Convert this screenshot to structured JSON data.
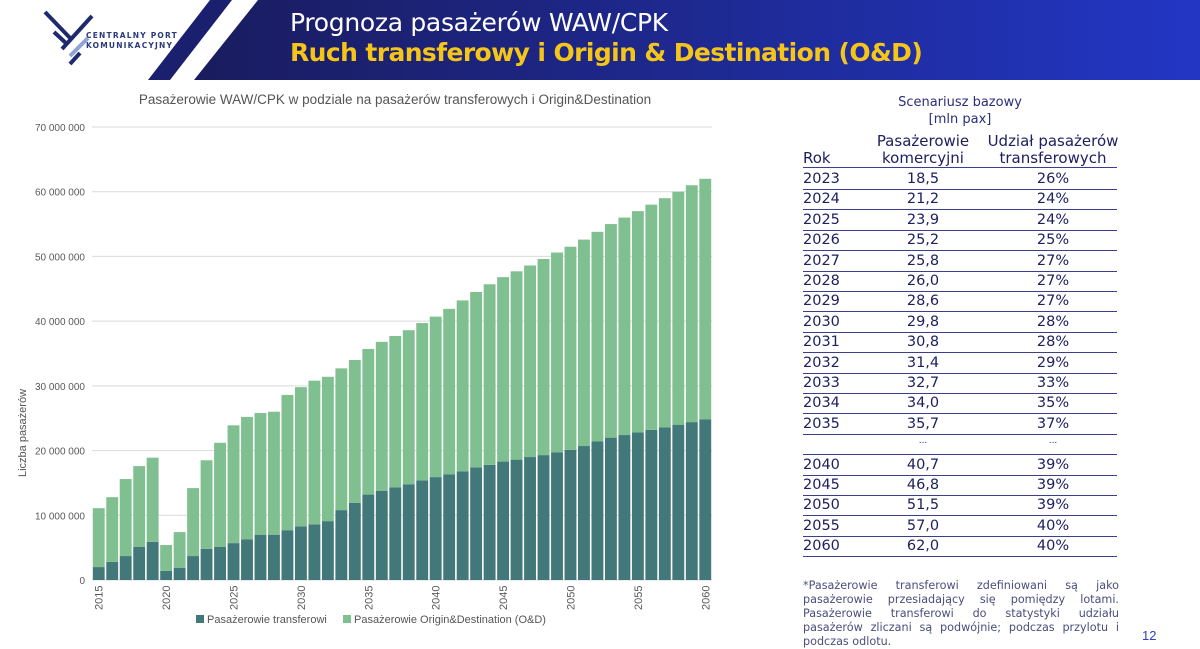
{
  "header": {
    "logo_lines": [
      "CENTRALNY PORT",
      "KOMUNIKACYJNY"
    ],
    "title": "Prognoza pasażerów WAW/CPK",
    "subtitle": "Ruch transferowy i Origin & Destination (O&D)"
  },
  "chart_data": {
    "type": "bar",
    "stacked": true,
    "title": "Pasażerowie WAW/CPK w podziale na pasażerów transferowych i Origin&Destination",
    "xlabel": "",
    "ylabel": "Liczba pasażerów",
    "ylim": [
      0,
      70000000
    ],
    "yticks": [
      0,
      10000000,
      20000000,
      30000000,
      40000000,
      50000000,
      60000000,
      70000000
    ],
    "ytick_labels": [
      "0",
      "10 000 000",
      "20 000 000",
      "30 000 000",
      "40 000 000",
      "50 000 000",
      "60 000 000",
      "70 000 000"
    ],
    "xtick_labels": [
      "2015",
      "2020",
      "2025",
      "2030",
      "2035",
      "2040",
      "2045",
      "2050",
      "2055",
      "2060"
    ],
    "grid": true,
    "legend": "bottom",
    "categories": [
      2015,
      2016,
      2017,
      2018,
      2019,
      2020,
      2021,
      2022,
      2023,
      2024,
      2025,
      2026,
      2027,
      2028,
      2029,
      2030,
      2031,
      2032,
      2033,
      2034,
      2035,
      2036,
      2037,
      2038,
      2039,
      2040,
      2041,
      2042,
      2043,
      2044,
      2045,
      2046,
      2047,
      2048,
      2049,
      2050,
      2051,
      2052,
      2053,
      2054,
      2055,
      2056,
      2057,
      2058,
      2059,
      2060
    ],
    "series": [
      {
        "name": "Pasażerowie transferowi",
        "color": "#43787a",
        "values": [
          2000000,
          2800000,
          3700000,
          5100000,
          5900000,
          1400000,
          1900000,
          3700000,
          4800000,
          5100000,
          5700000,
          6300000,
          7000000,
          7000000,
          7700000,
          8300000,
          8600000,
          9100000,
          10800000,
          11900000,
          13200000,
          13800000,
          14300000,
          14800000,
          15400000,
          15900000,
          16300000,
          16800000,
          17400000,
          17800000,
          18300000,
          18600000,
          19000000,
          19300000,
          19700000,
          20100000,
          20700000,
          21400000,
          22000000,
          22400000,
          22800000,
          23200000,
          23600000,
          24000000,
          24400000,
          24800000
        ]
      },
      {
        "name": "Pasażerowie Origin&Destination (O&D)",
        "color": "#80bf90",
        "values": [
          9100000,
          10000000,
          11900000,
          12500000,
          13000000,
          4000000,
          5500000,
          10500000,
          13700000,
          16100000,
          18200000,
          18900000,
          18800000,
          19000000,
          20900000,
          21500000,
          22200000,
          22300000,
          21900000,
          22100000,
          22500000,
          23000000,
          23400000,
          23800000,
          24300000,
          24800000,
          25600000,
          26400000,
          27100000,
          27900000,
          28500000,
          29100000,
          29600000,
          30300000,
          30900000,
          31400000,
          31900000,
          32400000,
          33000000,
          33600000,
          34200000,
          34800000,
          35400000,
          36000000,
          36600000,
          37200000
        ]
      }
    ]
  },
  "table": {
    "scenario": "Scenariusz bazowy",
    "unit": "[mln pax]",
    "col_year": "Rok",
    "col_pax": [
      "Pasażerowie",
      "komercyjni"
    ],
    "col_share": [
      "Udział pasażerów",
      "transferowych"
    ],
    "rows": [
      {
        "year": "2023",
        "pax": "18,5",
        "share": "26%"
      },
      {
        "year": "2024",
        "pax": "21,2",
        "share": "24%"
      },
      {
        "year": "2025",
        "pax": "23,9",
        "share": "24%"
      },
      {
        "year": "2026",
        "pax": "25,2",
        "share": "25%"
      },
      {
        "year": "2027",
        "pax": "25,8",
        "share": "27%"
      },
      {
        "year": "2028",
        "pax": "26,0",
        "share": "27%"
      },
      {
        "year": "2029",
        "pax": "28,6",
        "share": "27%"
      },
      {
        "year": "2030",
        "pax": "29,8",
        "share": "28%"
      },
      {
        "year": "2031",
        "pax": "30,8",
        "share": "28%"
      },
      {
        "year": "2032",
        "pax": "31,4",
        "share": "29%"
      },
      {
        "year": "2033",
        "pax": "32,7",
        "share": "33%"
      },
      {
        "year": "2034",
        "pax": "34,0",
        "share": "35%"
      },
      {
        "year": "2035",
        "pax": "35,7",
        "share": "37%"
      },
      {
        "year": "",
        "pax": "...",
        "share": "..."
      },
      {
        "year": "2040",
        "pax": "40,7",
        "share": "39%"
      },
      {
        "year": "2045",
        "pax": "46,8",
        "share": "39%"
      },
      {
        "year": "2050",
        "pax": "51,5",
        "share": "39%"
      },
      {
        "year": "2055",
        "pax": "57,0",
        "share": "40%"
      },
      {
        "year": "2060",
        "pax": "62,0",
        "share": "40%"
      }
    ]
  },
  "footnote": "*Pasażerowie transferowi zdefiniowani są jako pasażerowie przesiadający się pomiędzy lotami. Pasażerowie transferowi do statystyki udziału pasażerów zliczani są podwójnie; podczas przylotu i podczas odlotu.",
  "page_number": "12",
  "colors": {
    "navy": "#1a1f6e",
    "banner": "#1b1f78",
    "yellow": "#f5c518",
    "table_text": "#1e2060"
  }
}
